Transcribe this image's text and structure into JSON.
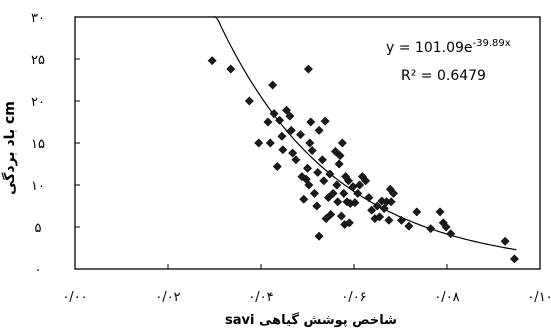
{
  "chart_data": {
    "type": "scatter",
    "title": "",
    "xlabel": "savi شاخص پوشش گیاهی",
    "ylabel": "باد بردگی cm",
    "xlim": [
      0,
      0.1
    ],
    "ylim": [
      0,
      30
    ],
    "x_ticks": [
      0,
      0.02,
      0.04,
      0.06,
      0.08,
      0.1
    ],
    "y_ticks": [
      0,
      5,
      10,
      15,
      20,
      25,
      30
    ],
    "x_tick_labels": [
      "۰/۰۰",
      "۰/۰۲",
      "۰/۰۴",
      "۰/۰۶",
      "۰/۰۸",
      "۰/۱۰"
    ],
    "y_tick_labels": [
      "۰",
      "۵",
      "۱۰",
      "۱۵",
      "۲۰",
      "۲۵",
      "۳۰"
    ],
    "grid": false,
    "marker": "diamond",
    "marker_color": "#1a1a1a",
    "trendline": {
      "type": "exponential",
      "a": 101.09,
      "b": -39.89,
      "x_range": [
        0.0297,
        0.0949
      ]
    },
    "equation_label": "y = 101.09e",
    "equation_exponent": "-39.89x",
    "r2_label": "R² = 0.6479",
    "points": [
      [
        0.0295,
        24.8
      ],
      [
        0.0335,
        23.8
      ],
      [
        0.0375,
        20.0
      ],
      [
        0.0395,
        15.0
      ],
      [
        0.0415,
        17.5
      ],
      [
        0.042,
        15.0
      ],
      [
        0.0425,
        21.9
      ],
      [
        0.0428,
        18.5
      ],
      [
        0.044,
        17.7
      ],
      [
        0.0445,
        15.8
      ],
      [
        0.0447,
        14.2
      ],
      [
        0.0455,
        18.9
      ],
      [
        0.0462,
        18.2
      ],
      [
        0.0465,
        16.5
      ],
      [
        0.0468,
        13.8
      ],
      [
        0.0475,
        13.0
      ],
      [
        0.0485,
        16.0
      ],
      [
        0.0488,
        11.0
      ],
      [
        0.0492,
        8.3
      ],
      [
        0.0497,
        10.7
      ],
      [
        0.05,
        12.0
      ],
      [
        0.0503,
        10.0
      ],
      [
        0.0505,
        15.0
      ],
      [
        0.0507,
        17.5
      ],
      [
        0.0502,
        23.8
      ],
      [
        0.051,
        14.1
      ],
      [
        0.0515,
        9.0
      ],
      [
        0.052,
        7.5
      ],
      [
        0.0522,
        11.5
      ],
      [
        0.0525,
        16.5
      ],
      [
        0.0532,
        13.0
      ],
      [
        0.0535,
        10.5
      ],
      [
        0.0538,
        17.6
      ],
      [
        0.054,
        6.0
      ],
      [
        0.0545,
        8.5
      ],
      [
        0.0548,
        11.3
      ],
      [
        0.055,
        6.5
      ],
      [
        0.0555,
        9.0
      ],
      [
        0.056,
        14.0
      ],
      [
        0.0563,
        10.0
      ],
      [
        0.0565,
        8.0
      ],
      [
        0.0568,
        12.5
      ],
      [
        0.057,
        13.5
      ],
      [
        0.0573,
        6.3
      ],
      [
        0.0575,
        15.0
      ],
      [
        0.0578,
        9.0
      ],
      [
        0.058,
        5.3
      ],
      [
        0.0582,
        11.0
      ],
      [
        0.0585,
        8.0
      ],
      [
        0.0588,
        10.5
      ],
      [
        0.059,
        5.5
      ],
      [
        0.0592,
        7.8
      ],
      [
        0.0598,
        9.8
      ],
      [
        0.0602,
        7.9
      ],
      [
        0.0608,
        9.0
      ],
      [
        0.0612,
        10.0
      ],
      [
        0.0618,
        11.0
      ],
      [
        0.0625,
        10.5
      ],
      [
        0.0632,
        8.5
      ],
      [
        0.0638,
        7.0
      ],
      [
        0.0645,
        6.0
      ],
      [
        0.065,
        7.5
      ],
      [
        0.0655,
        6.2
      ],
      [
        0.066,
        8.1
      ],
      [
        0.0665,
        7.2
      ],
      [
        0.067,
        8.0
      ],
      [
        0.0675,
        5.8
      ],
      [
        0.0678,
        9.5
      ],
      [
        0.068,
        8.0
      ],
      [
        0.0685,
        9.0
      ],
      [
        0.0702,
        5.8
      ],
      [
        0.0718,
        5.1
      ],
      [
        0.0735,
        6.8
      ],
      [
        0.0765,
        4.8
      ],
      [
        0.0785,
        6.8
      ],
      [
        0.0792,
        5.5
      ],
      [
        0.0798,
        5.0
      ],
      [
        0.0808,
        4.2
      ],
      [
        0.0525,
        3.9
      ],
      [
        0.0925,
        3.3
      ],
      [
        0.0945,
        1.2
      ],
      [
        0.0435,
        12.2
      ]
    ]
  }
}
